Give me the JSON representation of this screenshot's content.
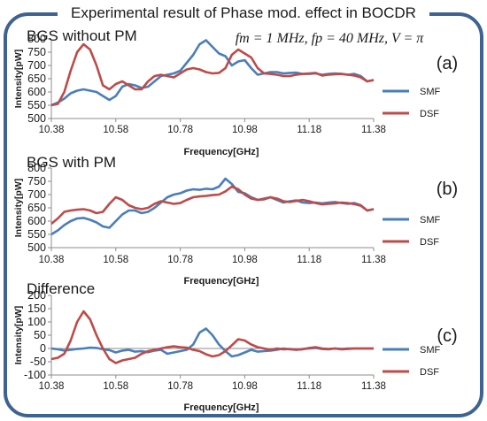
{
  "title": "Experimental result of Phase mod. effect in BOCDR",
  "params": "fm = 1 MHz, fp = 40 MHz, V = π",
  "colors": {
    "SMF": "#4a7ebb",
    "DSF": "#be4b48",
    "frame": "#3f6391"
  },
  "chart_data": [
    {
      "type": "line",
      "title": "BGS without PM",
      "panel_label": "(a)",
      "xlabel": "Frequency[GHz]",
      "ylabel": "Intensity[pW]",
      "xlim": [
        10.38,
        11.38
      ],
      "ylim": [
        500,
        800
      ],
      "yticks": [
        500,
        550,
        600,
        650,
        700,
        750,
        800
      ],
      "xticks": [
        10.38,
        10.58,
        10.78,
        10.98,
        11.18,
        11.38
      ],
      "series": [
        {
          "name": "SMF",
          "color": "#4a7ebb",
          "x": [
            10.38,
            10.4,
            10.42,
            10.44,
            10.46,
            10.48,
            10.5,
            10.52,
            10.54,
            10.56,
            10.58,
            10.6,
            10.62,
            10.64,
            10.66,
            10.68,
            10.7,
            10.72,
            10.74,
            10.76,
            10.78,
            10.8,
            10.82,
            10.84,
            10.86,
            10.88,
            10.9,
            10.92,
            10.94,
            10.96,
            10.98,
            11.0,
            11.02,
            11.04,
            11.06,
            11.08,
            11.1,
            11.12,
            11.14,
            11.16,
            11.18,
            11.2,
            11.22,
            11.24,
            11.26,
            11.28,
            11.3,
            11.32,
            11.34,
            11.36,
            11.38
          ],
          "y": [
            550,
            560,
            575,
            595,
            605,
            610,
            605,
            600,
            585,
            570,
            585,
            620,
            630,
            625,
            615,
            620,
            640,
            660,
            665,
            670,
            680,
            710,
            740,
            780,
            795,
            770,
            745,
            735,
            700,
            715,
            720,
            690,
            665,
            670,
            675,
            675,
            670,
            672,
            673,
            668,
            668,
            670,
            665,
            668,
            670,
            668,
            665,
            668,
            660,
            640,
            645
          ]
        },
        {
          "name": "DSF",
          "color": "#be4b48",
          "x": [
            10.38,
            10.4,
            10.42,
            10.44,
            10.46,
            10.48,
            10.5,
            10.52,
            10.54,
            10.56,
            10.58,
            10.6,
            10.62,
            10.64,
            10.66,
            10.68,
            10.7,
            10.72,
            10.74,
            10.76,
            10.78,
            10.8,
            10.82,
            10.84,
            10.86,
            10.88,
            10.9,
            10.92,
            10.94,
            10.96,
            10.98,
            11.0,
            11.02,
            11.04,
            11.06,
            11.08,
            11.1,
            11.12,
            11.14,
            11.16,
            11.18,
            11.2,
            11.22,
            11.24,
            11.26,
            11.28,
            11.3,
            11.32,
            11.34,
            11.36,
            11.38
          ],
          "y": [
            550,
            555,
            600,
            680,
            750,
            780,
            760,
            700,
            625,
            610,
            630,
            640,
            625,
            610,
            610,
            640,
            660,
            665,
            660,
            655,
            670,
            685,
            690,
            685,
            675,
            670,
            672,
            690,
            740,
            760,
            745,
            730,
            690,
            670,
            668,
            665,
            660,
            660,
            665,
            668,
            670,
            672,
            662,
            665,
            667,
            668,
            665,
            662,
            655,
            640,
            645
          ]
        }
      ]
    },
    {
      "type": "line",
      "title": "BGS with PM",
      "panel_label": "(b)",
      "xlabel": "Frequency[GHz]",
      "ylabel": "Intensity[pW]",
      "xlim": [
        10.38,
        11.38
      ],
      "ylim": [
        500,
        800
      ],
      "yticks": [
        500,
        550,
        600,
        650,
        700,
        750,
        800
      ],
      "xticks": [
        10.38,
        10.58,
        10.78,
        10.98,
        11.18,
        11.38
      ],
      "series": [
        {
          "name": "SMF",
          "color": "#4a7ebb",
          "x": [
            10.38,
            10.4,
            10.42,
            10.44,
            10.46,
            10.48,
            10.5,
            10.52,
            10.54,
            10.56,
            10.58,
            10.6,
            10.62,
            10.64,
            10.66,
            10.68,
            10.7,
            10.72,
            10.74,
            10.76,
            10.78,
            10.8,
            10.82,
            10.84,
            10.86,
            10.88,
            10.9,
            10.92,
            10.94,
            10.96,
            10.98,
            11.0,
            11.02,
            11.04,
            11.06,
            11.08,
            11.1,
            11.12,
            11.14,
            11.16,
            11.18,
            11.2,
            11.22,
            11.24,
            11.26,
            11.28,
            11.3,
            11.32,
            11.34,
            11.36,
            11.38
          ],
          "y": [
            550,
            565,
            585,
            600,
            610,
            612,
            605,
            595,
            580,
            575,
            600,
            625,
            640,
            640,
            630,
            635,
            650,
            670,
            690,
            700,
            705,
            715,
            720,
            718,
            722,
            720,
            730,
            760,
            740,
            710,
            705,
            690,
            680,
            685,
            690,
            680,
            670,
            675,
            678,
            670,
            668,
            670,
            667,
            670,
            672,
            668,
            665,
            668,
            660,
            640,
            645
          ]
        },
        {
          "name": "DSF",
          "color": "#be4b48",
          "x": [
            10.38,
            10.4,
            10.42,
            10.44,
            10.46,
            10.48,
            10.5,
            10.52,
            10.54,
            10.56,
            10.58,
            10.6,
            10.62,
            10.64,
            10.66,
            10.68,
            10.7,
            10.72,
            10.74,
            10.76,
            10.78,
            10.8,
            10.82,
            10.84,
            10.86,
            10.88,
            10.9,
            10.92,
            10.94,
            10.96,
            10.98,
            11.0,
            11.02,
            11.04,
            11.06,
            11.08,
            11.1,
            11.12,
            11.14,
            11.16,
            11.18,
            11.2,
            11.22,
            11.24,
            11.26,
            11.28,
            11.3,
            11.32,
            11.34,
            11.36,
            11.38
          ],
          "y": [
            590,
            610,
            635,
            640,
            643,
            645,
            640,
            630,
            635,
            665,
            690,
            680,
            660,
            650,
            645,
            650,
            665,
            675,
            670,
            665,
            668,
            680,
            690,
            693,
            695,
            698,
            700,
            712,
            730,
            720,
            700,
            685,
            680,
            682,
            690,
            685,
            675,
            672,
            676,
            680,
            675,
            668,
            663,
            665,
            667,
            670,
            668,
            664,
            658,
            640,
            645
          ]
        }
      ]
    },
    {
      "type": "line",
      "title": "Difference",
      "panel_label": "(c)",
      "xlabel": "Frequency[GHz]",
      "ylabel": "Intensity[pW]",
      "xlim": [
        10.38,
        11.38
      ],
      "ylim": [
        -100,
        200
      ],
      "yticks": [
        -100,
        -50,
        0,
        50,
        100,
        150,
        200
      ],
      "xticks": [
        10.38,
        10.58,
        10.78,
        10.98,
        11.18,
        11.38
      ],
      "series": [
        {
          "name": "SMF",
          "color": "#4a7ebb",
          "x": [
            10.38,
            10.4,
            10.42,
            10.44,
            10.46,
            10.48,
            10.5,
            10.52,
            10.54,
            10.56,
            10.58,
            10.6,
            10.62,
            10.64,
            10.66,
            10.68,
            10.7,
            10.72,
            10.74,
            10.76,
            10.78,
            10.8,
            10.82,
            10.84,
            10.86,
            10.88,
            10.9,
            10.92,
            10.94,
            10.96,
            10.98,
            11.0,
            11.02,
            11.04,
            11.06,
            11.08,
            11.1,
            11.12,
            11.14,
            11.16,
            11.18,
            11.2,
            11.22,
            11.24,
            11.26,
            11.28,
            11.3,
            11.32,
            11.34,
            11.36,
            11.38
          ],
          "y": [
            0,
            -3,
            -8,
            -5,
            -2,
            0,
            3,
            2,
            -3,
            -6,
            -15,
            -8,
            -5,
            -12,
            -10,
            -14,
            -8,
            -5,
            -20,
            -15,
            -10,
            -5,
            15,
            60,
            75,
            50,
            15,
            -10,
            -30,
            -25,
            -15,
            -5,
            -12,
            -10,
            -8,
            -5,
            0,
            -3,
            -5,
            -2,
            0,
            2,
            -2,
            -3,
            0,
            -2,
            0,
            0,
            0,
            0,
            0
          ]
        },
        {
          "name": "DSF",
          "color": "#be4b48",
          "x": [
            10.38,
            10.4,
            10.42,
            10.44,
            10.46,
            10.48,
            10.5,
            10.52,
            10.54,
            10.56,
            10.58,
            10.6,
            10.62,
            10.64,
            10.66,
            10.68,
            10.7,
            10.72,
            10.74,
            10.76,
            10.78,
            10.8,
            10.82,
            10.84,
            10.86,
            10.88,
            10.9,
            10.92,
            10.94,
            10.96,
            10.98,
            11.0,
            11.02,
            11.04,
            11.06,
            11.08,
            11.1,
            11.12,
            11.14,
            11.16,
            11.18,
            11.2,
            11.22,
            11.24,
            11.26,
            11.28,
            11.3,
            11.32,
            11.34,
            11.36,
            11.38
          ],
          "y": [
            -40,
            -35,
            -20,
            30,
            100,
            140,
            110,
            50,
            0,
            -40,
            -55,
            -45,
            -40,
            -35,
            -20,
            -10,
            -5,
            0,
            5,
            8,
            5,
            3,
            -5,
            -10,
            -22,
            -30,
            -25,
            -10,
            12,
            35,
            30,
            15,
            5,
            0,
            -5,
            0,
            -3,
            -2,
            -5,
            -3,
            2,
            5,
            0,
            -2,
            0,
            -3,
            -2,
            0,
            0,
            0,
            0
          ]
        }
      ]
    }
  ]
}
